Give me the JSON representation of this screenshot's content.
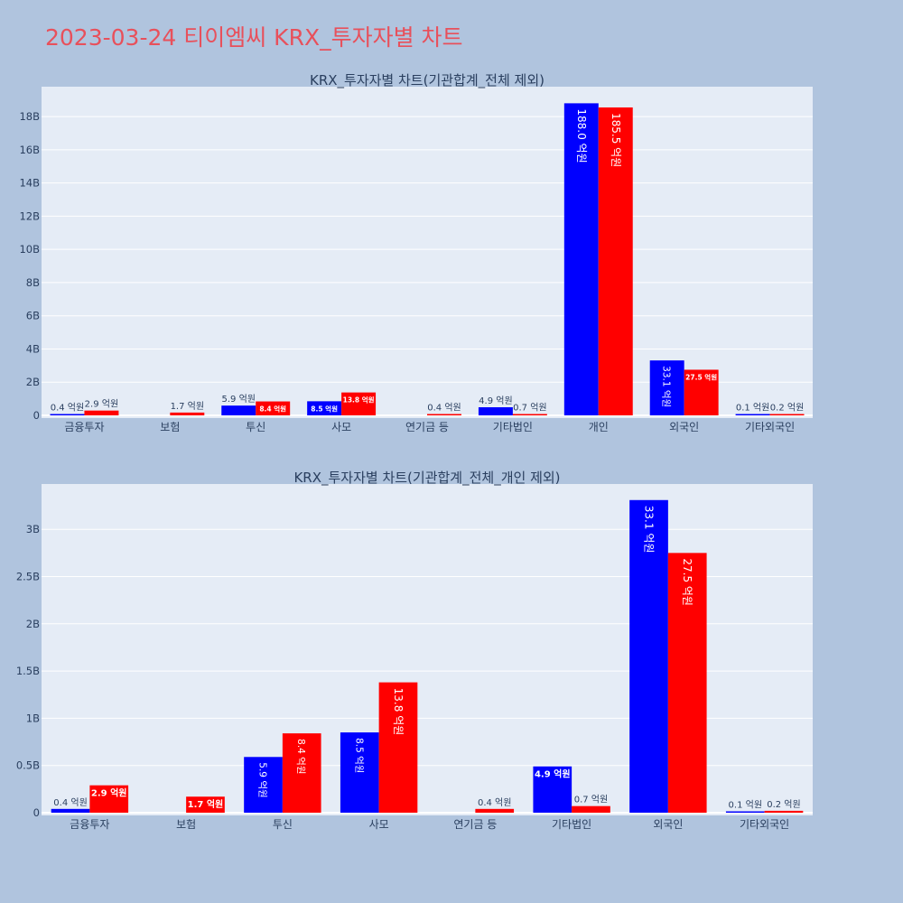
{
  "page_title": "2023-03-24 티이엠씨 KRX_투자자별 차트",
  "colors": {
    "buy": "#0000ff",
    "sell": "#ff0000",
    "plot_bg": "#e5ecf6",
    "paper_bg": "#b0c4de",
    "title": "#e8505b"
  },
  "chart_data": [
    {
      "type": "bar",
      "title": "KRX_투자자별 차트(기관합계_전체 제외)",
      "categories": [
        "금융투자",
        "보험",
        "투신",
        "사모",
        "연기금 등",
        "기타법인",
        "개인",
        "외국인",
        "기타외국인"
      ],
      "series": [
        {
          "values": [
            0.04,
            0,
            0.59,
            0.85,
            0,
            0.49,
            18.8,
            3.31,
            0.01
          ],
          "labels": [
            "0.4 억원",
            "",
            "5.9 억원",
            "8.5 억원",
            "",
            "4.9 억원",
            "188.0 억원",
            "33.1 억원",
            "0.1 억원"
          ]
        },
        {
          "values": [
            0.29,
            0.17,
            0.84,
            1.38,
            0.04,
            0.07,
            18.55,
            2.75,
            0.02
          ],
          "labels": [
            "2.9 억원",
            "1.7 억원",
            "8.4 억원",
            "13.8 억원",
            "0.4 억원",
            "0.7 억원",
            "185.5 억원",
            "27.5 억원",
            "0.2 억원"
          ]
        }
      ],
      "yticks": [
        0,
        2,
        4,
        6,
        8,
        10,
        12,
        14,
        16,
        18
      ],
      "ytick_labels": [
        "0",
        "2B",
        "4B",
        "6B",
        "8B",
        "10B",
        "12B",
        "14B",
        "16B",
        "18B"
      ],
      "ylim": [
        0,
        19.8
      ],
      "grid": true
    },
    {
      "type": "bar",
      "title": "KRX_투자자별 차트(기관합계_전체_개인 제외)",
      "categories": [
        "금융투자",
        "보험",
        "투신",
        "사모",
        "연기금 등",
        "기타법인",
        "외국인",
        "기타외국인"
      ],
      "series": [
        {
          "values": [
            0.04,
            0,
            0.59,
            0.85,
            0,
            0.49,
            3.31,
            0.01
          ],
          "labels": [
            "0.4 억원",
            "",
            "5.9 억원",
            "8.5 억원",
            "",
            "4.9 억원",
            "33.1 억원",
            "0.1 억원"
          ]
        },
        {
          "values": [
            0.29,
            0.17,
            0.84,
            1.38,
            0.04,
            0.07,
            2.75,
            0.02
          ],
          "labels": [
            "2.9 억원",
            "1.7 억원",
            "8.4 억원",
            "13.8 억원",
            "0.4 억원",
            "0.7 억원",
            "27.5 억원",
            "0.2 억원"
          ]
        }
      ],
      "yticks": [
        0,
        0.5,
        1,
        1.5,
        2,
        2.5,
        3
      ],
      "ytick_labels": [
        "0",
        "0.5B",
        "1B",
        "1.5B",
        "2B",
        "2.5B",
        "3B"
      ],
      "ylim": [
        0,
        3.48
      ],
      "grid": true
    }
  ]
}
